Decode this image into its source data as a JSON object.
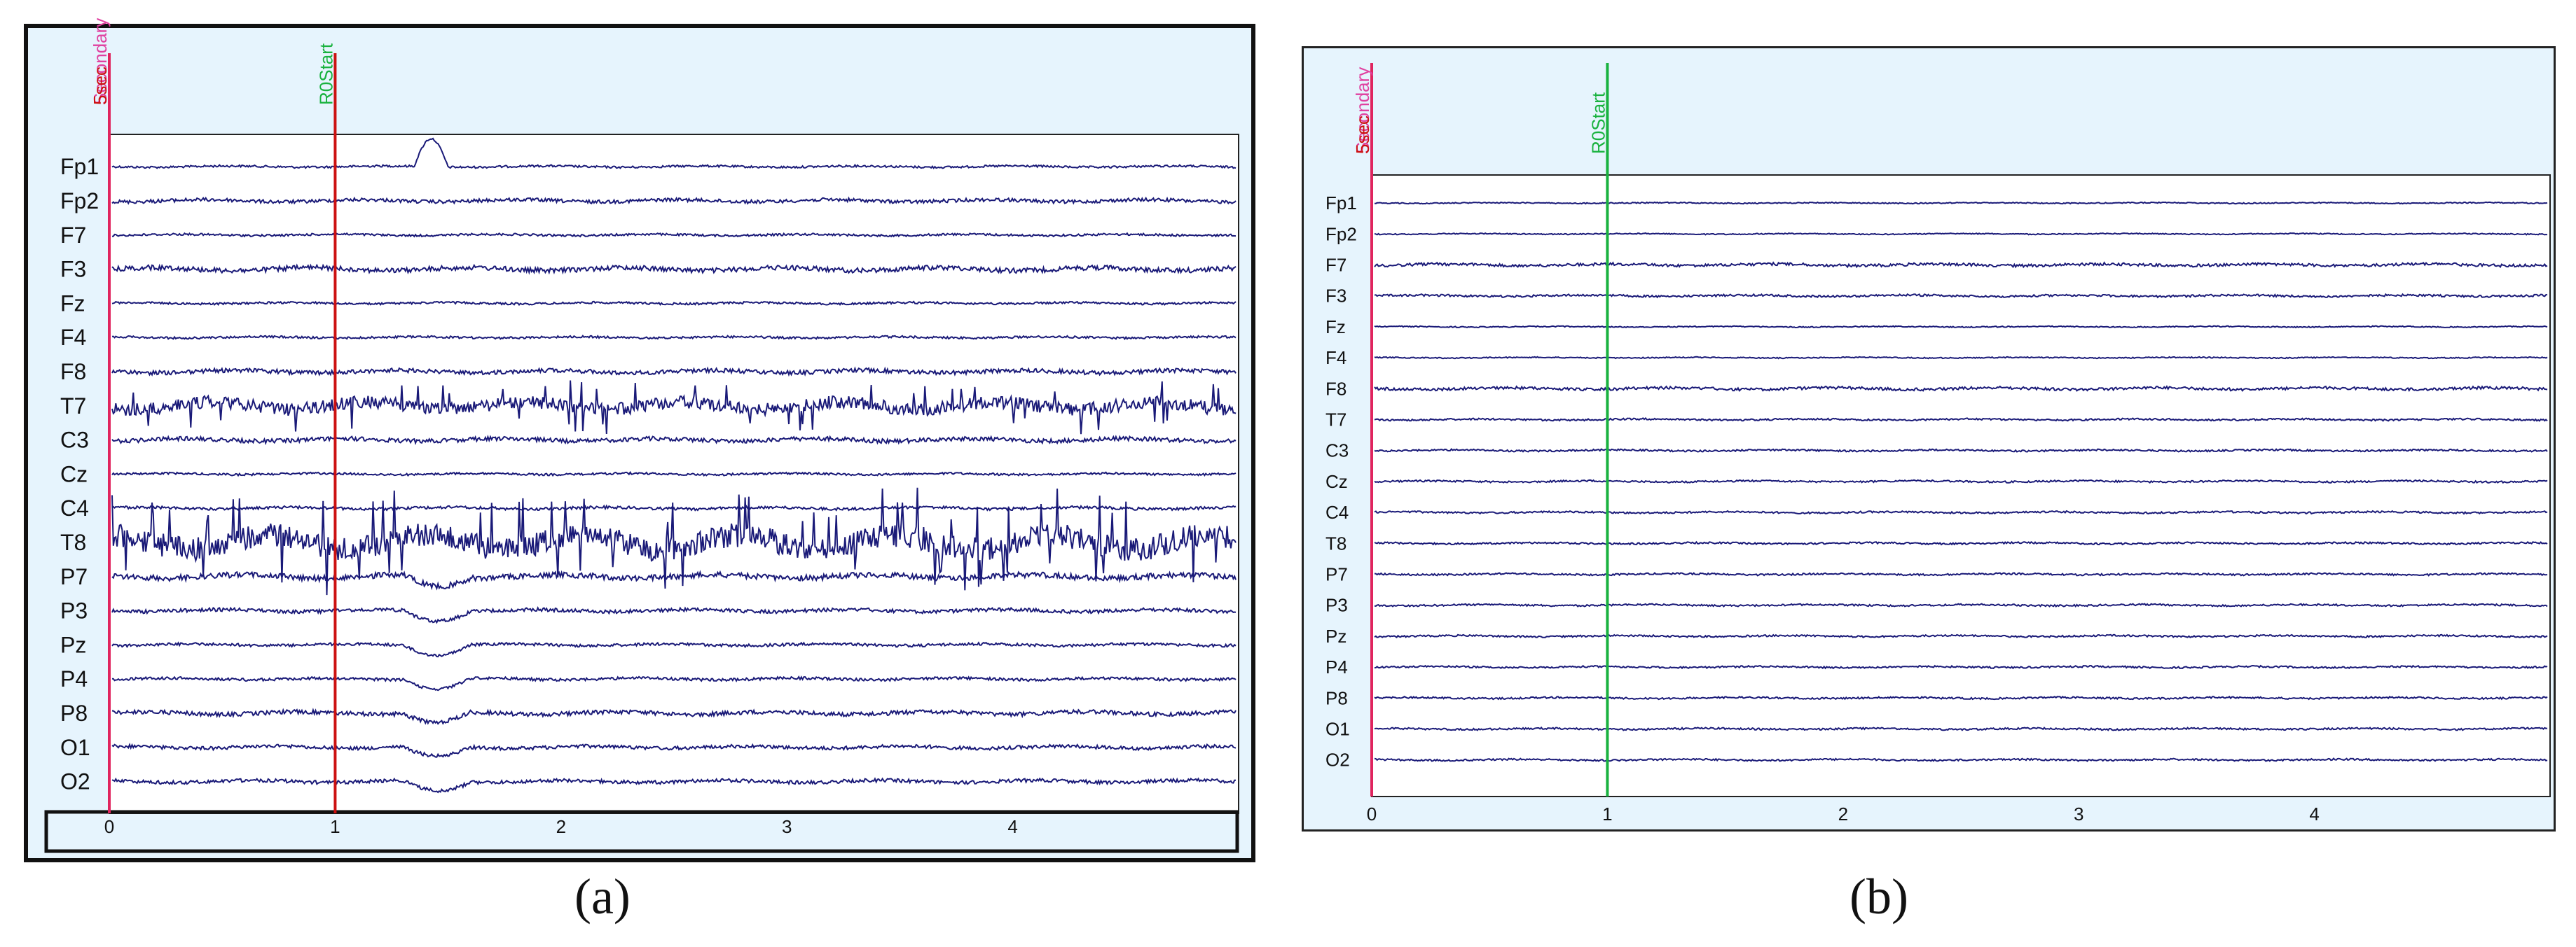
{
  "captions": [
    "(a)",
    "(b)"
  ],
  "chart_data": [
    {
      "type": "line",
      "panel": "a",
      "channels": [
        "Fp1",
        "Fp2",
        "F7",
        "F3",
        "Fz",
        "F4",
        "F8",
        "T7",
        "C3",
        "Cz",
        "C4",
        "T8",
        "P7",
        "P3",
        "Pz",
        "P4",
        "P8",
        "O1",
        "O2"
      ],
      "x_ticks": [
        0,
        1,
        2,
        3,
        4
      ],
      "xlim": [
        0,
        5
      ],
      "markers": [
        {
          "label": "Secondary",
          "overlay": "5sec",
          "x": 0,
          "color": "#e0245e"
        },
        {
          "label": "R0Start",
          "x": 1,
          "color": "#cc1111",
          "label_color": "#19b23f"
        }
      ],
      "trace_color": "#1a1a78",
      "background": "#ffffff",
      "frame_background": "#e6f4fd"
    },
    {
      "type": "line",
      "panel": "b",
      "channels": [
        "Fp1",
        "Fp2",
        "F7",
        "F3",
        "Fz",
        "F4",
        "F8",
        "T7",
        "C3",
        "Cz",
        "C4",
        "T8",
        "P7",
        "P3",
        "Pz",
        "P4",
        "P8",
        "O1",
        "O2"
      ],
      "x_ticks": [
        0,
        1,
        2,
        3,
        4
      ],
      "xlim": [
        0,
        5
      ],
      "markers": [
        {
          "label": "Secondary",
          "overlay": "5sec",
          "x": 0,
          "color": "#e0245e"
        },
        {
          "label": "R0Start",
          "x": 1,
          "color": "#19b23f",
          "label_color": "#19b23f"
        }
      ],
      "trace_color": "#1a1a78",
      "background": "#ffffff",
      "frame_background": "#e6f4fd"
    }
  ]
}
